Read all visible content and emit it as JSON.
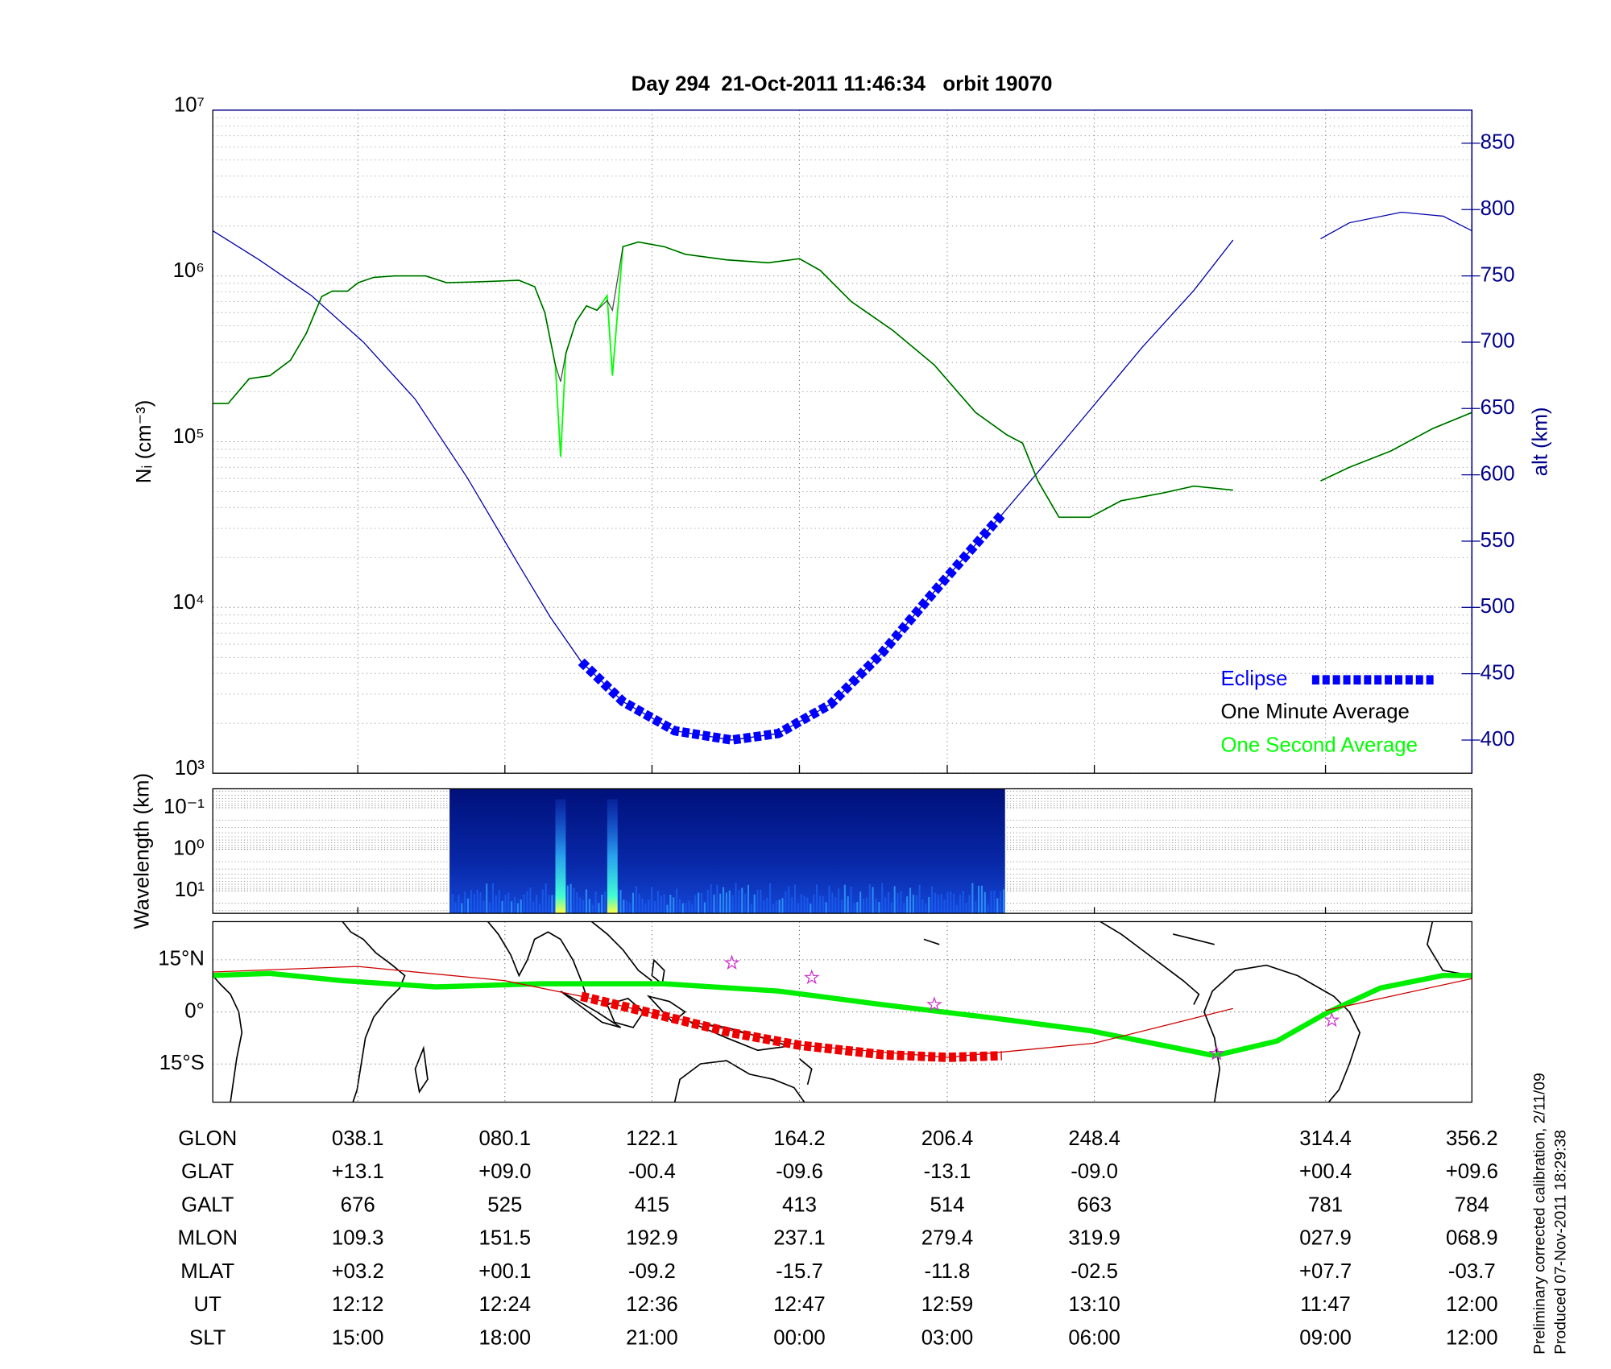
{
  "title": "Day 294  21-Oct-2011 11:46:34   orbit 19070",
  "chart_data": [
    {
      "type": "line",
      "ylabel": "Nᵢ (cm⁻³)",
      "y2label": "alt (km)",
      "log_y": true,
      "grid": true,
      "legend": "lower right",
      "xlim": [
        -3.3,
        356.2
      ],
      "xticks": [
        38.1,
        80.1,
        122.1,
        164.2,
        206.4,
        248.4,
        314.4,
        356.2
      ],
      "ylim": [
        1000,
        10000000
      ],
      "yticks": [
        {
          "value": 1000,
          "label": "10³"
        },
        {
          "value": 10000,
          "label": "10⁴"
        },
        {
          "value": 100000,
          "label": "10⁵"
        },
        {
          "value": 1000000,
          "label": "10⁶"
        },
        {
          "value": 10000000,
          "label": "10⁷"
        }
      ],
      "y2lim": [
        375,
        875
      ],
      "y2ticks": [
        400,
        450,
        500,
        550,
        600,
        650,
        700,
        750,
        800,
        850
      ],
      "series": [
        {
          "name": "Eclipse",
          "color": "#0000ff",
          "axis": "y2",
          "x": [
            101.9,
            113.8,
            128.6,
            144.9,
            158.2,
            173.1,
            187.9,
            202.7,
            222.0
          ],
          "values": [
            459,
            429,
            407,
            400,
            405,
            427,
            466,
            512,
            570
          ]
        },
        {
          "name": "One Minute Average",
          "color": "#000000",
          "x": [
            -3.3,
            1.1,
            7.1,
            13.0,
            18.9,
            23.4,
            27.8,
            30.8,
            35.2,
            38.2,
            42.6,
            48.6,
            57.5,
            63.4,
            72.3,
            84.1,
            88.6,
            91.5,
            94.5,
            96.0,
            97.5,
            100.4,
            103.4,
            106.4,
            109.3,
            110.8,
            113.8,
            118.2,
            125.6,
            131.6,
            143.4,
            155.3,
            164.2,
            170.1,
            179.0,
            190.8,
            202.7,
            214.5,
            223.4,
            227.9,
            232.3,
            238.3,
            247.2,
            256.0,
            267.9,
            276.8,
            288.0,
            300.0,
            313.0,
            321.2,
            333.1,
            345.0,
            356.2
          ],
          "values": [
            170000,
            170000,
            240000,
            250000,
            310000,
            450000,
            750000,
            810000,
            810000,
            910000,
            980000,
            1000000,
            1000000,
            910000,
            920000,
            940000,
            860000,
            600000,
            290000,
            230000,
            340000,
            530000,
            660000,
            620000,
            710000,
            620000,
            1500000,
            1600000,
            1500000,
            1350000,
            1250000,
            1200000,
            1270000,
            1080000,
            700000,
            470000,
            290000,
            150000,
            110000,
            98000,
            58000,
            35000,
            35000,
            44000,
            49000,
            54000,
            51000,
            null,
            58000,
            70000,
            88000,
            120000,
            150000
          ]
        },
        {
          "name": "One Second Average",
          "color": "#00ff00",
          "x": [
            -3.3,
            1.1,
            7.1,
            13.0,
            18.9,
            23.4,
            27.8,
            30.8,
            35.2,
            38.2,
            42.6,
            48.6,
            57.5,
            63.4,
            72.3,
            84.1,
            88.6,
            91.5,
            94.5,
            96.0,
            97.5,
            100.4,
            103.4,
            106.4,
            109.3,
            110.8,
            113.8,
            118.2,
            125.6,
            131.6,
            143.4,
            155.3,
            164.2,
            170.1,
            179.0,
            190.8,
            202.7,
            214.5,
            223.4,
            227.9,
            232.3,
            238.3,
            247.2,
            256.0,
            267.9,
            276.8,
            288.0,
            300.0,
            313.0,
            321.2,
            333.1,
            345.0,
            356.2
          ],
          "values": [
            170000,
            170000,
            240000,
            250000,
            310000,
            450000,
            750000,
            810000,
            810000,
            910000,
            980000,
            1000000,
            1000000,
            910000,
            920000,
            940000,
            860000,
            600000,
            290000,
            81000,
            340000,
            530000,
            660000,
            620000,
            760000,
            250000,
            1500000,
            1600000,
            1500000,
            1350000,
            1250000,
            1200000,
            1270000,
            1080000,
            700000,
            470000,
            290000,
            150000,
            110000,
            98000,
            58000,
            35000,
            35000,
            44000,
            49000,
            54000,
            51000,
            null,
            58000,
            70000,
            88000,
            120000,
            150000
          ]
        }
      ],
      "altitude": {
        "color": "#0000aa",
        "axis": "y2",
        "x": [
          -3.3,
          10.0,
          24.9,
          39.7,
          54.5,
          69.3,
          84.1,
          93.0,
          101.9,
          113.8,
          128.6,
          144.9,
          158.2,
          173.1,
          187.9,
          202.7,
          222.0,
          232.3,
          247.2,
          262.0,
          276.8,
          288.0,
          300.0,
          313.0,
          321.2,
          336.1,
          348.0,
          356.2
        ],
        "values": [
          784,
          762,
          735,
          700,
          657,
          598,
          532,
          493,
          459,
          429,
          407,
          400,
          405,
          427,
          466,
          512,
          570,
          602,
          649,
          696,
          739,
          777,
          null,
          778,
          790,
          798,
          795,
          784
        ]
      }
    },
    {
      "type": "heatmap",
      "ylabel": "Wavelength (km)",
      "log_y": true,
      "inverted": true,
      "xlim": [
        -3.3,
        356.2
      ],
      "xticks": [
        38.1,
        80.1,
        122.1,
        164.2,
        206.4,
        248.4,
        314.4,
        356.2
      ],
      "ylim": [
        0.035,
        35
      ],
      "yticks": [
        {
          "value": 0.1,
          "label": "10⁻¹"
        },
        {
          "value": 1,
          "label": "10⁰"
        },
        {
          "value": 10,
          "label": "10¹"
        }
      ],
      "extent": [
        64.3,
        222.9
      ],
      "bursts": [
        96.0,
        110.8
      ]
    },
    {
      "type": "map",
      "xlim": [
        -3.3,
        356.2
      ],
      "xticks": [
        38.1,
        80.1,
        122.1,
        164.2,
        206.4,
        248.4,
        314.4,
        356.2
      ],
      "ylim": [
        -26,
        26
      ],
      "yticks": [
        {
          "value": 15,
          "label": "15°N"
        },
        {
          "value": 0,
          "label": "0°"
        },
        {
          "value": -15,
          "label": "15°S"
        }
      ],
      "dip_equator": {
        "color": "#00ee00",
        "x": [
          -3.3,
          13.0,
          33.8,
          60.4,
          90.1,
          125.6,
          158.2,
          187.9,
          217.5,
          247.2,
          282.7,
          300.5,
          315.3,
          330.1,
          347.9,
          356.2
        ],
        "values": [
          10.5,
          11.1,
          9.0,
          7.2,
          8.1,
          8.1,
          6.0,
          2.1,
          -1.5,
          -5.4,
          -12.6,
          -8.4,
          0.0,
          6.9,
          10.5,
          10.5
        ]
      },
      "orbit_track": {
        "color": "#cc0000",
        "x": [
          -3.3,
          38.1,
          80.1,
          101.9,
          122.1,
          164.2,
          206.4,
          248.4,
          288.0,
          300.0,
          314.4,
          356.2
        ],
        "values": [
          11.5,
          13.1,
          9.0,
          4.5,
          -0.4,
          -9.6,
          -13.1,
          -9.0,
          1.0,
          null,
          0.4,
          9.6
        ]
      },
      "eclipse_track": {
        "color": "#ee0000",
        "x": [
          101.9,
          122.1,
          144.9,
          164.2,
          187.9,
          206.4,
          222.0
        ],
        "values": [
          4.5,
          -0.4,
          -6.0,
          -9.6,
          -12.3,
          -13.1,
          -12.6
        ]
      },
      "stars": {
        "color": "#cc33cc",
        "x": [
          144.9,
          167.7,
          202.7,
          283.3,
          316.2
        ],
        "values": [
          14.1,
          9.9,
          2.1,
          -12.0,
          -2.4
        ]
      }
    }
  ],
  "table": {
    "rows": [
      [
        "GLON",
        "038.1",
        "080.1",
        "122.1",
        "164.2",
        "206.4",
        "248.4",
        "314.4",
        "356.2"
      ],
      [
        "GLAT",
        "+13.1",
        "+09.0",
        "-00.4",
        "-09.6",
        "-13.1",
        "-09.0",
        "+00.4",
        "+09.6"
      ],
      [
        "GALT",
        "676",
        "525",
        "415",
        "413",
        "514",
        "663",
        "781",
        "784"
      ],
      [
        "MLON",
        "109.3",
        "151.5",
        "192.9",
        "237.1",
        "279.4",
        "319.9",
        "027.9",
        "068.9"
      ],
      [
        "MLAT",
        "+03.2",
        "+00.1",
        "-09.2",
        "-15.7",
        "-11.8",
        "-02.5",
        "+07.7",
        "-03.7"
      ],
      [
        "UT",
        "12:12",
        "12:24",
        "12:36",
        "12:47",
        "12:59",
        "13:10",
        "11:47",
        "12:00"
      ],
      [
        "SLT",
        "15:00",
        "18:00",
        "21:00",
        "00:00",
        "03:00",
        "06:00",
        "09:00",
        "12:00"
      ]
    ]
  },
  "footer": [
    "Preliminary corrected calibration, 2/11/09",
    "Produced 07-Nov-2011 18:29:38"
  ]
}
